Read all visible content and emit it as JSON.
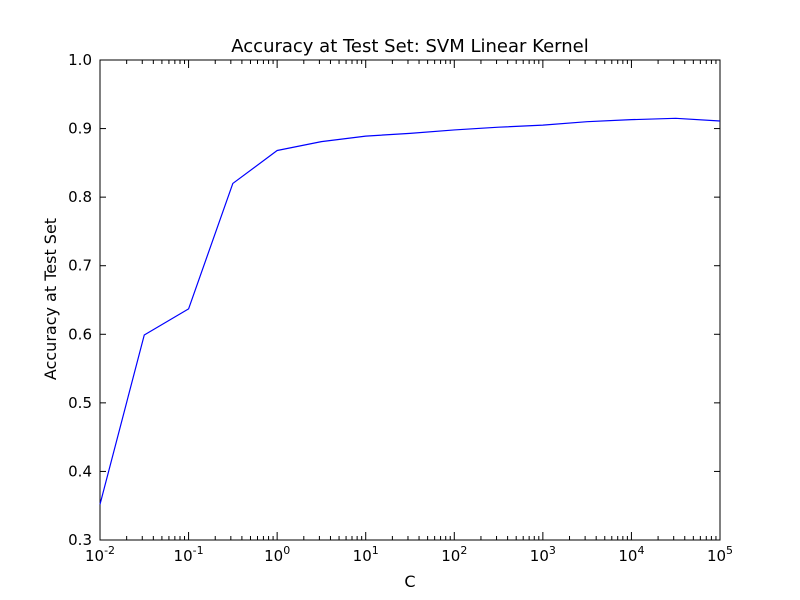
{
  "chart_data": {
    "type": "line",
    "title": "Accuracy at Test Set: SVM Linear Kernel",
    "xlabel": "C",
    "ylabel": "Accuracy at Test Set",
    "xscale": "log",
    "xlim": [
      0.01,
      100000
    ],
    "ylim": [
      0.3,
      1.0
    ],
    "grid": false,
    "legend": "none",
    "x_ticks": [
      {
        "base": "10",
        "exp": "-2"
      },
      {
        "base": "10",
        "exp": "-1"
      },
      {
        "base": "10",
        "exp": "0"
      },
      {
        "base": "10",
        "exp": "1"
      },
      {
        "base": "10",
        "exp": "2"
      },
      {
        "base": "10",
        "exp": "3"
      },
      {
        "base": "10",
        "exp": "4"
      },
      {
        "base": "10",
        "exp": "5"
      }
    ],
    "y_ticks": [
      "0.3",
      "0.4",
      "0.5",
      "0.6",
      "0.7",
      "0.8",
      "0.9",
      "1.0"
    ],
    "series": [
      {
        "color": "#0000ff",
        "x": [
          0.01,
          0.0316,
          0.1,
          0.316,
          1,
          3.16,
          10,
          31.6,
          100,
          316,
          1000,
          3160,
          10000,
          31600,
          100000
        ],
        "y": [
          0.352,
          0.599,
          0.637,
          0.82,
          0.868,
          0.881,
          0.889,
          0.893,
          0.898,
          0.902,
          0.905,
          0.91,
          0.913,
          0.915,
          0.911
        ]
      }
    ]
  }
}
